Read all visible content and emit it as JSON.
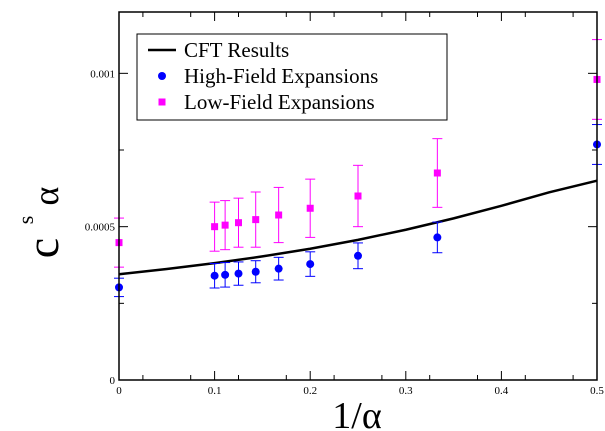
{
  "chart_data": {
    "type": "scatter",
    "xlabel": "1/α",
    "ylabel": {
      "main": "c",
      "superscript": "s",
      "subscript": "α"
    },
    "xlim": [
      0,
      0.5
    ],
    "ylim": [
      0,
      0.0012
    ],
    "x_ticks": [
      {
        "value": 0,
        "label": "0"
      },
      {
        "value": 0.1,
        "label": "0.1"
      },
      {
        "value": 0.2,
        "label": "0.2"
      },
      {
        "value": 0.3,
        "label": "0.3"
      },
      {
        "value": 0.4,
        "label": "0.4"
      },
      {
        "value": 0.5,
        "label": "0.5"
      }
    ],
    "y_ticks": [
      {
        "value": 0,
        "label": "0"
      },
      {
        "value": 0.0005,
        "label": "0.0005"
      },
      {
        "value": 0.001,
        "label": "0.001"
      }
    ],
    "grid": false,
    "legend": {
      "placement": "top-left"
    },
    "series": [
      {
        "name": "CFT Results",
        "kind": "line",
        "color": "#000000",
        "x": [
          0,
          0.05,
          0.1,
          0.15,
          0.2,
          0.25,
          0.3,
          0.35,
          0.4,
          0.45,
          0.5
        ],
        "y": [
          0.000345,
          0.000362,
          0.000381,
          0.000403,
          0.000428,
          0.000457,
          0.00049,
          0.000527,
          0.000568,
          0.000612,
          0.00065
        ]
      },
      {
        "name": "High-Field Expansions",
        "kind": "points",
        "marker": "circle",
        "color": "#0000ff",
        "x": [
          0,
          0.1,
          0.111,
          0.125,
          0.143,
          0.167,
          0.2,
          0.25,
          0.333,
          0.5
        ],
        "y": [
          0.000302,
          0.00034,
          0.000343,
          0.000347,
          0.000353,
          0.000363,
          0.000378,
          0.000405,
          0.000465,
          0.000768
        ],
        "err": [
          3e-05,
          4e-05,
          4e-05,
          3.8e-05,
          3.6e-05,
          3.7e-05,
          4e-05,
          4.2e-05,
          5e-05,
          6.5e-05
        ]
      },
      {
        "name": "Low-Field Expansions",
        "kind": "points",
        "marker": "square",
        "color": "#ff00ff",
        "x": [
          0,
          0.1,
          0.111,
          0.125,
          0.143,
          0.167,
          0.2,
          0.25,
          0.333,
          0.5
        ],
        "y": [
          0.000448,
          0.0005,
          0.000505,
          0.000513,
          0.000523,
          0.000538,
          0.00056,
          0.0006,
          0.000675,
          0.00098
        ],
        "err": [
          8e-05,
          8e-05,
          8e-05,
          8e-05,
          9e-05,
          9e-05,
          9.5e-05,
          0.0001,
          0.000112,
          0.00013
        ]
      }
    ]
  }
}
